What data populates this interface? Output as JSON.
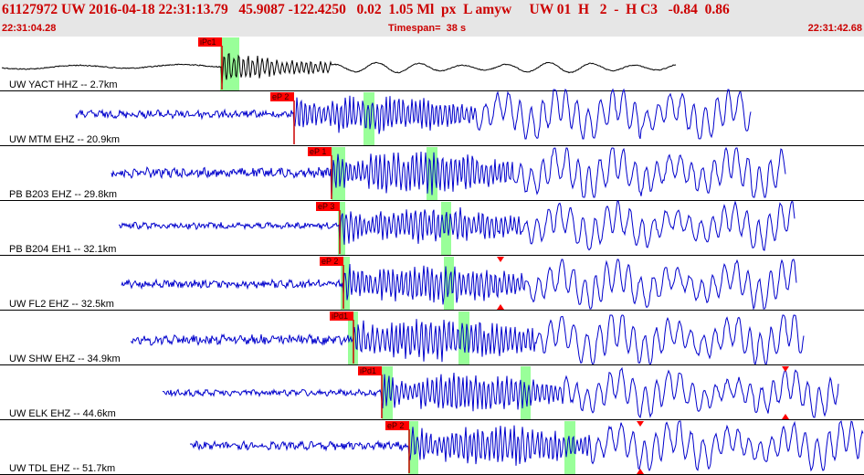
{
  "header": {
    "event_line": "61127972 UW 2016-04-18 22:31:13.79   45.9087 -122.4250   0.02  1.05 Ml  px  L amyw     UW 01  H   2  -  H C3   -0.84  0.86",
    "start_time": "22:31:04.28",
    "timespan": "Timespan=  38 s",
    "end_time": "22:31:42.68"
  },
  "colors": {
    "header_bg": "#e6e6e6",
    "header_text": "#cc0000",
    "trace_first": "#000000",
    "trace": "#0000cc",
    "pick_flag": "#ff0000",
    "pick_line": "#cc0000",
    "window": "#99ff99",
    "separator": "#000000"
  },
  "traces": [
    {
      "label": "UW YACT HHZ -- 2.7km",
      "pick": "iPc1",
      "color": "black",
      "amp_marker": false
    },
    {
      "label": "UW MTM EHZ -- 20.9km",
      "pick": "eP 2",
      "color": "blue",
      "amp_marker": false
    },
    {
      "label": "PB B203 EHZ -- 29.8km",
      "pick": "eP 1",
      "color": "blue",
      "amp_marker": false
    },
    {
      "label": "PB B204 EH1 -- 32.1km",
      "pick": "eP 3",
      "color": "blue",
      "amp_marker": false
    },
    {
      "label": "UW FL2 EHZ -- 32.5km",
      "pick": "eP 2",
      "color": "blue",
      "amp_marker": true
    },
    {
      "label": "UW SHW EHZ -- 34.9km",
      "pick": "iPd1",
      "color": "blue",
      "amp_marker": false
    },
    {
      "label": "UW ELK EHZ -- 44.6km",
      "pick": "iPd1",
      "color": "blue",
      "amp_marker": true
    },
    {
      "label": "UW TDL EHZ -- 51.7km",
      "pick": "eP 2",
      "color": "blue",
      "amp_marker": true
    }
  ]
}
